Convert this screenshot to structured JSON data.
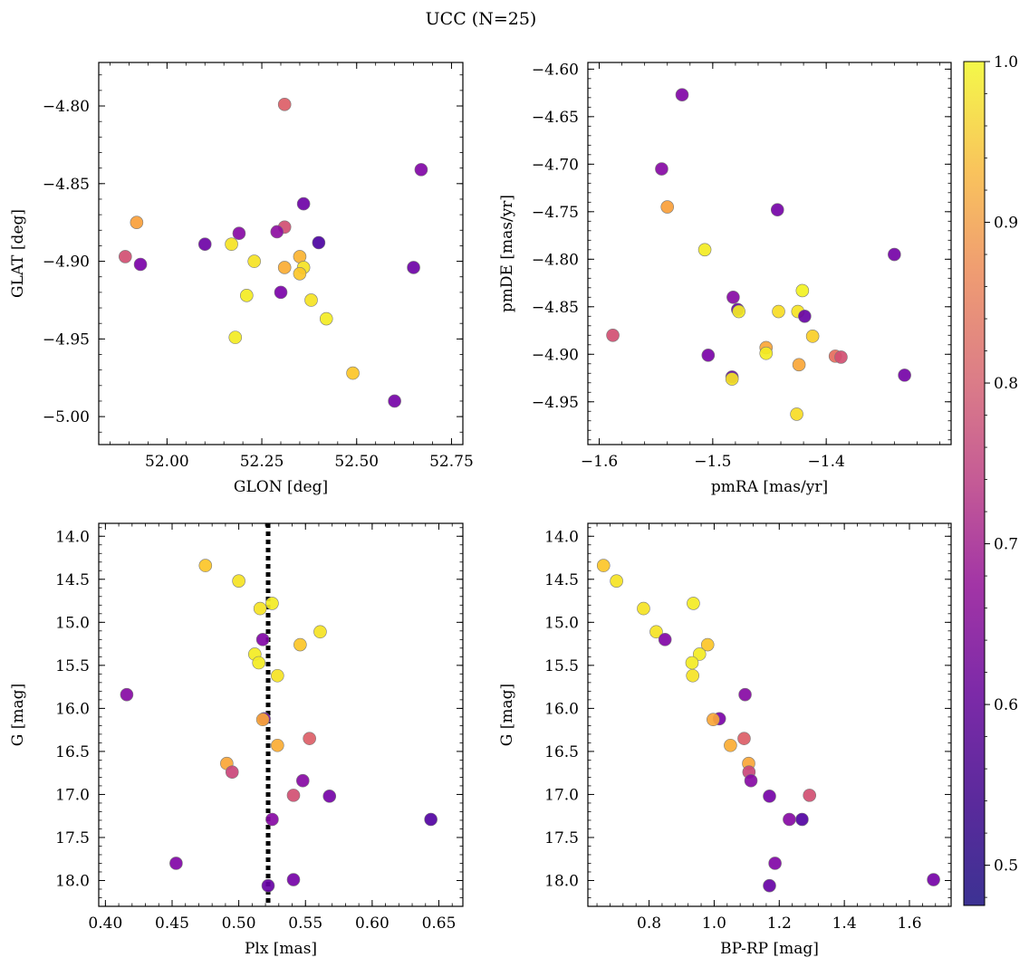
{
  "figure": {
    "title": "UCC (N=25)"
  },
  "colorbar": {
    "range": [
      0.475,
      1.0
    ],
    "ticks": [
      0.5,
      0.6,
      0.7,
      0.8,
      0.9,
      1.0
    ],
    "tick_labels": [
      "0.5",
      "0.6",
      "0.7",
      "0.8",
      "0.9",
      "1.0"
    ],
    "colormap": "plasma"
  },
  "chart_data": [
    {
      "type": "scatter",
      "title": "",
      "xlabel": "GLON [deg]",
      "ylabel": "GLAT [deg]",
      "xlim": [
        51.82,
        52.78
      ],
      "ylim": [
        -5.018,
        -4.772
      ],
      "y_inverted": false,
      "xticks": [
        52.0,
        52.25,
        52.5,
        52.75
      ],
      "xtick_labels": [
        "52.00",
        "52.25",
        "52.50",
        "52.75"
      ],
      "yticks": [
        -4.8,
        -4.85,
        -4.9,
        -4.95,
        -5.0
      ],
      "ytick_labels": [
        "−4.80",
        "−4.85",
        "−4.90",
        "−4.95",
        "−5.00"
      ],
      "points": [
        {
          "x": 52.31,
          "y": -4.799,
          "c": 0.75
        },
        {
          "x": 52.67,
          "y": -4.841,
          "c": 0.56
        },
        {
          "x": 51.92,
          "y": -4.875,
          "c": 0.87
        },
        {
          "x": 52.36,
          "y": -4.863,
          "c": 0.53
        },
        {
          "x": 52.31,
          "y": -4.878,
          "c": 0.72
        },
        {
          "x": 52.29,
          "y": -4.881,
          "c": 0.58
        },
        {
          "x": 52.19,
          "y": -4.882,
          "c": 0.57
        },
        {
          "x": 52.1,
          "y": -4.889,
          "c": 0.53
        },
        {
          "x": 52.17,
          "y": -4.889,
          "c": 0.97
        },
        {
          "x": 52.4,
          "y": -4.888,
          "c": 0.48
        },
        {
          "x": 51.89,
          "y": -4.897,
          "c": 0.72
        },
        {
          "x": 51.93,
          "y": -4.902,
          "c": 0.55
        },
        {
          "x": 52.23,
          "y": -4.9,
          "c": 0.97
        },
        {
          "x": 52.35,
          "y": -4.897,
          "c": 0.9
        },
        {
          "x": 52.31,
          "y": -4.904,
          "c": 0.89
        },
        {
          "x": 52.36,
          "y": -4.904,
          "c": 0.97
        },
        {
          "x": 52.65,
          "y": -4.904,
          "c": 0.53
        },
        {
          "x": 52.35,
          "y": -4.908,
          "c": 0.93
        },
        {
          "x": 52.21,
          "y": -4.922,
          "c": 0.98
        },
        {
          "x": 52.3,
          "y": -4.92,
          "c": 0.55
        },
        {
          "x": 52.38,
          "y": -4.925,
          "c": 0.97
        },
        {
          "x": 52.42,
          "y": -4.937,
          "c": 0.98
        },
        {
          "x": 52.18,
          "y": -4.949,
          "c": 0.98
        },
        {
          "x": 52.49,
          "y": -4.972,
          "c": 0.93
        },
        {
          "x": 52.6,
          "y": -4.99,
          "c": 0.54
        }
      ]
    },
    {
      "type": "scatter",
      "title": "",
      "xlabel": "pmRA [mas/yr]",
      "ylabel": "pmDE [mas/yr]",
      "xlim": [
        -1.61,
        -1.29
      ],
      "ylim": [
        -4.995,
        -4.593
      ],
      "y_inverted": false,
      "xticks": [
        -1.6,
        -1.5,
        -1.4
      ],
      "xtick_labels": [
        "−1.6",
        "−1.5",
        "−1.4"
      ],
      "yticks": [
        -4.6,
        -4.65,
        -4.7,
        -4.75,
        -4.8,
        -4.85,
        -4.9,
        -4.95
      ],
      "ytick_labels": [
        "−4.60",
        "−4.65",
        "−4.70",
        "−4.75",
        "−4.80",
        "−4.85",
        "−4.90",
        "−4.95"
      ],
      "points": [
        {
          "x": -1.527,
          "y": -4.627,
          "c": 0.56
        },
        {
          "x": -1.545,
          "y": -4.705,
          "c": 0.57
        },
        {
          "x": -1.54,
          "y": -4.745,
          "c": 0.87
        },
        {
          "x": -1.443,
          "y": -4.748,
          "c": 0.54
        },
        {
          "x": -1.507,
          "y": -4.79,
          "c": 0.98
        },
        {
          "x": -1.34,
          "y": -4.795,
          "c": 0.54
        },
        {
          "x": -1.482,
          "y": -4.84,
          "c": 0.57
        },
        {
          "x": -1.478,
          "y": -4.853,
          "c": 0.52
        },
        {
          "x": -1.477,
          "y": -4.855,
          "c": 0.98
        },
        {
          "x": -1.442,
          "y": -4.855,
          "c": 0.96
        },
        {
          "x": -1.425,
          "y": -4.855,
          "c": 0.97
        },
        {
          "x": -1.421,
          "y": -4.833,
          "c": 0.99
        },
        {
          "x": -1.419,
          "y": -4.86,
          "c": 0.52
        },
        {
          "x": -1.412,
          "y": -4.881,
          "c": 0.94
        },
        {
          "x": -1.588,
          "y": -4.88,
          "c": 0.72
        },
        {
          "x": -1.453,
          "y": -4.893,
          "c": 0.88
        },
        {
          "x": -1.453,
          "y": -4.899,
          "c": 0.98
        },
        {
          "x": -1.504,
          "y": -4.901,
          "c": 0.55
        },
        {
          "x": -1.392,
          "y": -4.902,
          "c": 0.78
        },
        {
          "x": -1.387,
          "y": -4.903,
          "c": 0.72
        },
        {
          "x": -1.424,
          "y": -4.911,
          "c": 0.88
        },
        {
          "x": -1.483,
          "y": -4.924,
          "c": 0.52
        },
        {
          "x": -1.483,
          "y": -4.926,
          "c": 0.97
        },
        {
          "x": -1.331,
          "y": -4.922,
          "c": 0.54
        },
        {
          "x": -1.426,
          "y": -4.963,
          "c": 0.96
        }
      ]
    },
    {
      "type": "scatter",
      "title": "",
      "xlabel": "Plx [mas]",
      "ylabel": "G [mag]",
      "xlim": [
        0.395,
        0.668
      ],
      "ylim": [
        18.3,
        13.85
      ],
      "y_inverted": true,
      "xticks": [
        0.4,
        0.45,
        0.5,
        0.55,
        0.6,
        0.65
      ],
      "xtick_labels": [
        "0.40",
        "0.45",
        "0.50",
        "0.55",
        "0.60",
        "0.65"
      ],
      "yticks": [
        14.0,
        14.5,
        15.0,
        15.5,
        16.0,
        16.5,
        17.0,
        17.5,
        18.0
      ],
      "ytick_labels": [
        "14.0",
        "14.5",
        "15.0",
        "15.5",
        "16.0",
        "16.5",
        "17.0",
        "17.5",
        "18.0"
      ],
      "vline": {
        "x": 0.522,
        "style": "dotted",
        "color": "#000000"
      },
      "points": [
        {
          "x": 0.475,
          "y": 14.34,
          "c": 0.93
        },
        {
          "x": 0.5,
          "y": 14.52,
          "c": 0.97
        },
        {
          "x": 0.525,
          "y": 14.78,
          "c": 0.98
        },
        {
          "x": 0.516,
          "y": 14.84,
          "c": 0.97
        },
        {
          "x": 0.561,
          "y": 15.11,
          "c": 0.97
        },
        {
          "x": 0.518,
          "y": 15.2,
          "c": 0.56
        },
        {
          "x": 0.546,
          "y": 15.26,
          "c": 0.93
        },
        {
          "x": 0.512,
          "y": 15.37,
          "c": 0.98
        },
        {
          "x": 0.515,
          "y": 15.47,
          "c": 0.98
        },
        {
          "x": 0.529,
          "y": 15.62,
          "c": 0.97
        },
        {
          "x": 0.416,
          "y": 15.84,
          "c": 0.57
        },
        {
          "x": 0.519,
          "y": 16.12,
          "c": 0.55
        },
        {
          "x": 0.518,
          "y": 16.13,
          "c": 0.88
        },
        {
          "x": 0.553,
          "y": 16.35,
          "c": 0.75
        },
        {
          "x": 0.529,
          "y": 16.43,
          "c": 0.89
        },
        {
          "x": 0.491,
          "y": 16.64,
          "c": 0.88
        },
        {
          "x": 0.495,
          "y": 16.74,
          "c": 0.7
        },
        {
          "x": 0.548,
          "y": 16.84,
          "c": 0.57
        },
        {
          "x": 0.541,
          "y": 17.01,
          "c": 0.72
        },
        {
          "x": 0.568,
          "y": 17.02,
          "c": 0.54
        },
        {
          "x": 0.644,
          "y": 17.29,
          "c": 0.49
        },
        {
          "x": 0.525,
          "y": 17.29,
          "c": 0.57
        },
        {
          "x": 0.453,
          "y": 17.8,
          "c": 0.56
        },
        {
          "x": 0.541,
          "y": 17.99,
          "c": 0.54
        },
        {
          "x": 0.522,
          "y": 18.06,
          "c": 0.52
        }
      ]
    },
    {
      "type": "scatter",
      "title": "",
      "xlabel": "BP-RP [mag]",
      "ylabel": "G [mag]",
      "xlim": [
        0.612,
        1.728
      ],
      "ylim": [
        18.3,
        13.85
      ],
      "y_inverted": true,
      "xticks": [
        0.8,
        1.0,
        1.2,
        1.4,
        1.6
      ],
      "xtick_labels": [
        "0.8",
        "1.0",
        "1.2",
        "1.4",
        "1.6"
      ],
      "yticks": [
        14.0,
        14.5,
        15.0,
        15.5,
        16.0,
        16.5,
        17.0,
        17.5,
        18.0
      ],
      "ytick_labels": [
        "14.0",
        "14.5",
        "15.0",
        "15.5",
        "16.0",
        "16.5",
        "17.0",
        "17.5",
        "18.0"
      ],
      "points": [
        {
          "x": 0.66,
          "y": 14.34,
          "c": 0.93
        },
        {
          "x": 0.7,
          "y": 14.52,
          "c": 0.97
        },
        {
          "x": 0.936,
          "y": 14.78,
          "c": 0.98
        },
        {
          "x": 0.783,
          "y": 14.84,
          "c": 0.97
        },
        {
          "x": 0.822,
          "y": 15.11,
          "c": 0.97
        },
        {
          "x": 0.849,
          "y": 15.2,
          "c": 0.56
        },
        {
          "x": 0.98,
          "y": 15.26,
          "c": 0.93
        },
        {
          "x": 0.955,
          "y": 15.37,
          "c": 0.98
        },
        {
          "x": 0.932,
          "y": 15.47,
          "c": 0.98
        },
        {
          "x": 0.934,
          "y": 15.62,
          "c": 0.97
        },
        {
          "x": 1.095,
          "y": 15.84,
          "c": 0.57
        },
        {
          "x": 1.016,
          "y": 16.12,
          "c": 0.55
        },
        {
          "x": 0.997,
          "y": 16.13,
          "c": 0.88
        },
        {
          "x": 1.092,
          "y": 16.35,
          "c": 0.75
        },
        {
          "x": 1.05,
          "y": 16.43,
          "c": 0.89
        },
        {
          "x": 1.106,
          "y": 16.64,
          "c": 0.88
        },
        {
          "x": 1.107,
          "y": 16.74,
          "c": 0.7
        },
        {
          "x": 1.113,
          "y": 16.84,
          "c": 0.57
        },
        {
          "x": 1.17,
          "y": 17.02,
          "c": 0.54
        },
        {
          "x": 1.293,
          "y": 17.01,
          "c": 0.72
        },
        {
          "x": 1.231,
          "y": 17.29,
          "c": 0.57
        },
        {
          "x": 1.27,
          "y": 17.29,
          "c": 0.49
        },
        {
          "x": 1.187,
          "y": 17.8,
          "c": 0.56
        },
        {
          "x": 1.674,
          "y": 17.99,
          "c": 0.54
        },
        {
          "x": 1.17,
          "y": 18.06,
          "c": 0.52
        }
      ]
    }
  ]
}
